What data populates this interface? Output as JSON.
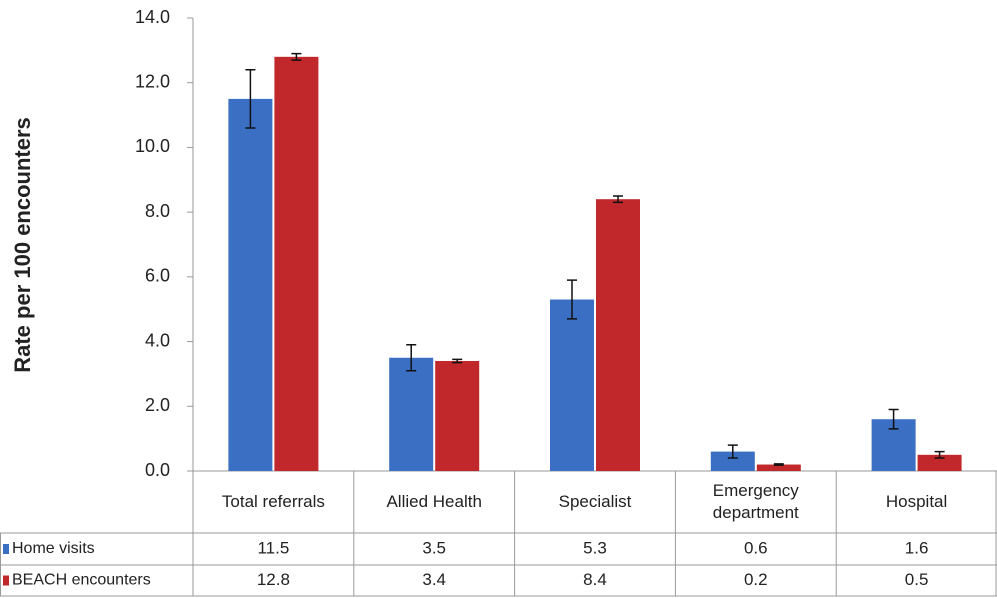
{
  "chart_data": {
    "type": "bar",
    "y_label": "Rate per 100 encounters",
    "categories": [
      "Total referrals",
      "Allied Health",
      "Specialist",
      "Emergency department",
      "Hospital"
    ],
    "series": [
      {
        "name": "Home visits",
        "color": "#3a6fc4",
        "values": [
          11.5,
          3.5,
          5.3,
          0.6,
          1.6
        ],
        "errors": [
          0.9,
          0.4,
          0.6,
          0.2,
          0.3
        ]
      },
      {
        "name": "BEACH encounters",
        "color": "#c0282b",
        "values": [
          12.8,
          3.4,
          8.4,
          0.2,
          0.5
        ],
        "errors": [
          0.1,
          0.05,
          0.1,
          0.02,
          0.1
        ]
      }
    ],
    "ylim": [
      0,
      14
    ],
    "yticks": [
      {
        "value": 0,
        "label": "0.0"
      },
      {
        "value": 2,
        "label": "2.0"
      },
      {
        "value": 4,
        "label": "4.0"
      },
      {
        "value": 6,
        "label": "6.0"
      },
      {
        "value": 8,
        "label": "8.0"
      },
      {
        "value": 10,
        "label": "10.0"
      },
      {
        "value": 12,
        "label": "12.0"
      },
      {
        "value": 14,
        "label": "14.0"
      }
    ],
    "grid": false
  }
}
